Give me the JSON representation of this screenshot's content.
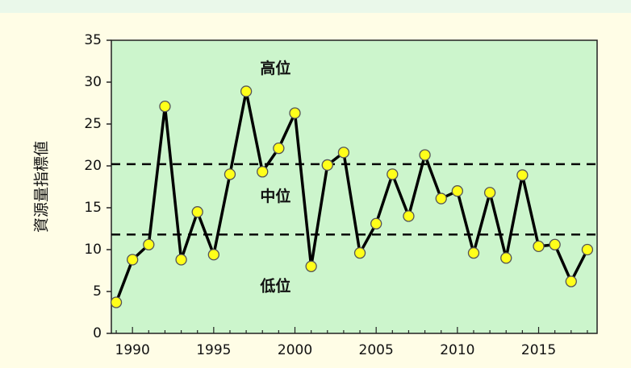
{
  "chart_data": {
    "type": "line",
    "title": "",
    "xlabel": "",
    "ylabel": "資源量指標値",
    "xlim": [
      1988.7,
      2018.6
    ],
    "ylim": [
      0,
      35
    ],
    "x_ticks": [
      1990,
      1995,
      2000,
      2005,
      2010,
      2015
    ],
    "y_ticks": [
      0,
      5,
      10,
      15,
      20,
      25,
      30,
      35
    ],
    "grid": false,
    "legend": "none",
    "series": [
      {
        "x": [
          1989,
          1990,
          1991,
          1992,
          1993,
          1994,
          1995,
          1996,
          1997,
          1998,
          1999,
          2000,
          2001,
          2002,
          2003,
          2004,
          2005,
          2006,
          2007,
          2008,
          2009,
          2010,
          2011,
          2012,
          2013,
          2014,
          2015,
          2016,
          2017,
          2018
        ],
        "values": [
          3.7,
          8.8,
          10.6,
          27.1,
          8.8,
          14.5,
          9.4,
          19.0,
          28.9,
          19.3,
          22.1,
          26.3,
          8.0,
          20.1,
          21.6,
          9.6,
          13.1,
          19.0,
          14.0,
          21.3,
          16.1,
          17.0,
          9.6,
          16.8,
          9.0,
          18.9,
          10.4,
          10.6,
          6.2,
          10.0
        ]
      }
    ],
    "reference_lines": [
      {
        "y": 20.2,
        "style": "dashed"
      },
      {
        "y": 11.8,
        "style": "dashed"
      }
    ],
    "annotations": [
      {
        "text": "高位",
        "x": 1998.8,
        "y": 31.6
      },
      {
        "text": "中位",
        "x": 1998.8,
        "y": 16.3
      },
      {
        "text": "低位",
        "x": 1998.8,
        "y": 5.6
      }
    ],
    "colors": {
      "plot_background": "#ccf5cc",
      "frame_background": "#fffde6",
      "line": "#000000",
      "marker_fill": "#ffff1a",
      "marker_stroke": "#555555"
    }
  }
}
